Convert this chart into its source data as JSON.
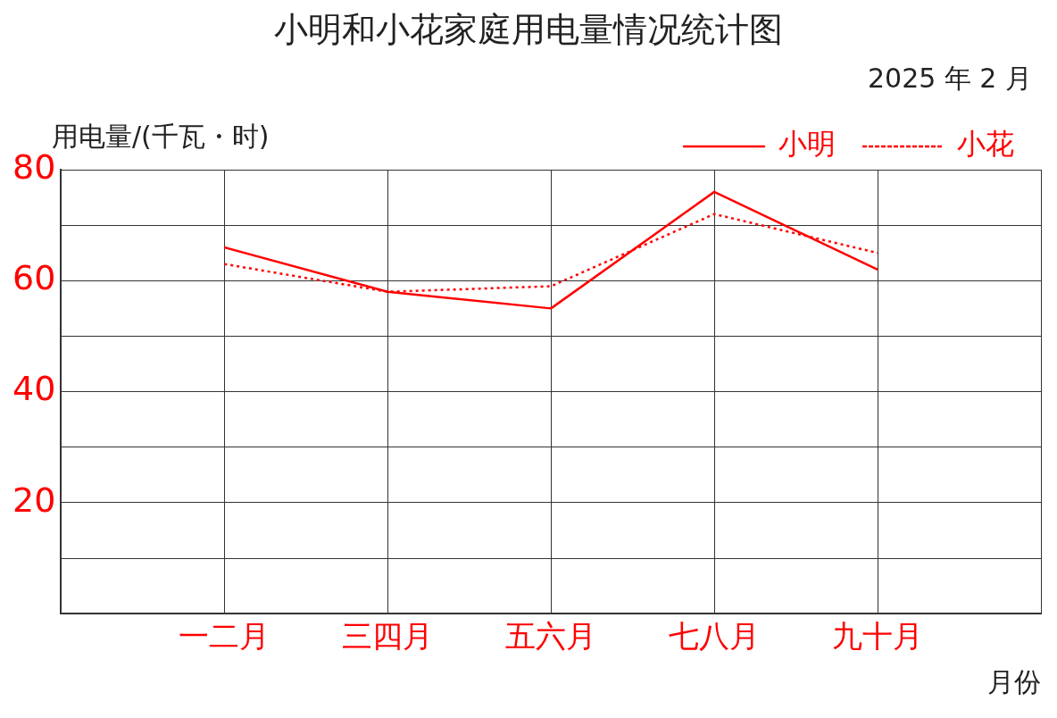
{
  "chart_data": {
    "type": "line",
    "title": "小明和小花家庭用电量情况统计图",
    "subtitle": "2025 年 2 月",
    "ylabel": "用电量/(千瓦・时)",
    "xlabel": "月份",
    "categories": [
      null,
      "一二月",
      "三四月",
      "五六月",
      "七八月",
      "九十月",
      null
    ],
    "series": [
      {
        "name": "小明",
        "color": "#ff0000",
        "line_style": "solid",
        "values": [
          null,
          66,
          58,
          55,
          76,
          62,
          null
        ]
      },
      {
        "name": "小花",
        "color": "#ff0000",
        "line_style": "dotted",
        "values": [
          null,
          63,
          58,
          59,
          72,
          65,
          null
        ]
      }
    ],
    "ylim": [
      0,
      80
    ],
    "yticks": [
      {
        "value": 0,
        "label": null
      },
      {
        "value": 10,
        "label": null
      },
      20,
      {
        "value": 30,
        "label": null
      },
      40,
      {
        "value": 50,
        "label": null
      },
      60,
      {
        "value": 70,
        "label": null
      },
      80
    ],
    "grid": true,
    "legend": "top right",
    "marker": "none"
  }
}
